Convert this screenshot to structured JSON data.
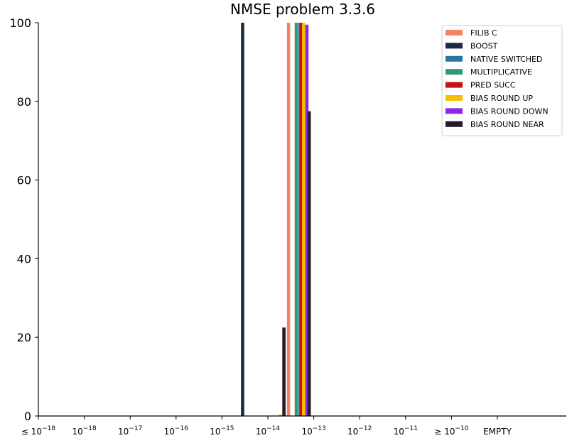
{
  "chart_data": {
    "type": "bar",
    "title": "NMSE problem 3.3.6",
    "xlabel": "",
    "ylabel": "",
    "ylim": [
      0,
      100
    ],
    "yticks": [
      "0",
      "20",
      "40",
      "60",
      "80",
      "100"
    ],
    "xticks": [
      {
        "prefix": "≤ 10",
        "exp": "−18"
      },
      {
        "prefix": "10",
        "exp": "−18"
      },
      {
        "prefix": "10",
        "exp": "−17"
      },
      {
        "prefix": "10",
        "exp": "−16"
      },
      {
        "prefix": "10",
        "exp": "−15"
      },
      {
        "prefix": "10",
        "exp": "−14"
      },
      {
        "prefix": "10",
        "exp": "−13"
      },
      {
        "prefix": "10",
        "exp": "−12"
      },
      {
        "prefix": "10",
        "exp": "−11"
      },
      {
        "prefix": "≥ 10",
        "exp": "−10"
      },
      {
        "prefix": "EMPTY",
        "exp": ""
      }
    ],
    "legend_position": "top-right",
    "grid": false,
    "series": [
      {
        "name": "FILIB C",
        "color": "#f4845f",
        "bars": [
          {
            "x": -13.55,
            "value": 100
          }
        ]
      },
      {
        "name": "BOOST",
        "color": "#1b2a41",
        "bars": [
          {
            "x": -14.55,
            "value": 100
          }
        ]
      },
      {
        "name": "NATIVE SWITCHED",
        "color": "#2a76a0",
        "bars": [
          {
            "x": -13.3,
            "value": 100
          }
        ]
      },
      {
        "name": "MULTIPLICATIVE",
        "color": "#2e9a6e",
        "bars": [
          {
            "x": -13.38,
            "value": 100
          }
        ]
      },
      {
        "name": "PRED SUCC",
        "color": "#c81010",
        "bars": [
          {
            "x": -13.27,
            "value": 100
          }
        ]
      },
      {
        "name": "BIAS ROUND UP",
        "color": "#f5c000",
        "bars": [
          {
            "x": -13.72,
            "value": 0.4
          },
          {
            "x": -13.22,
            "value": 100
          }
        ]
      },
      {
        "name": "BIAS ROUND DOWN",
        "color": "#8a2be2",
        "bars": [
          {
            "x": -13.15,
            "value": 99.5
          }
        ]
      },
      {
        "name": "BIAS ROUND NEAR",
        "color": "#231a2e",
        "bars": [
          {
            "x": -13.65,
            "value": 22.5
          },
          {
            "x": -13.1,
            "value": 77.5
          }
        ]
      }
    ]
  }
}
